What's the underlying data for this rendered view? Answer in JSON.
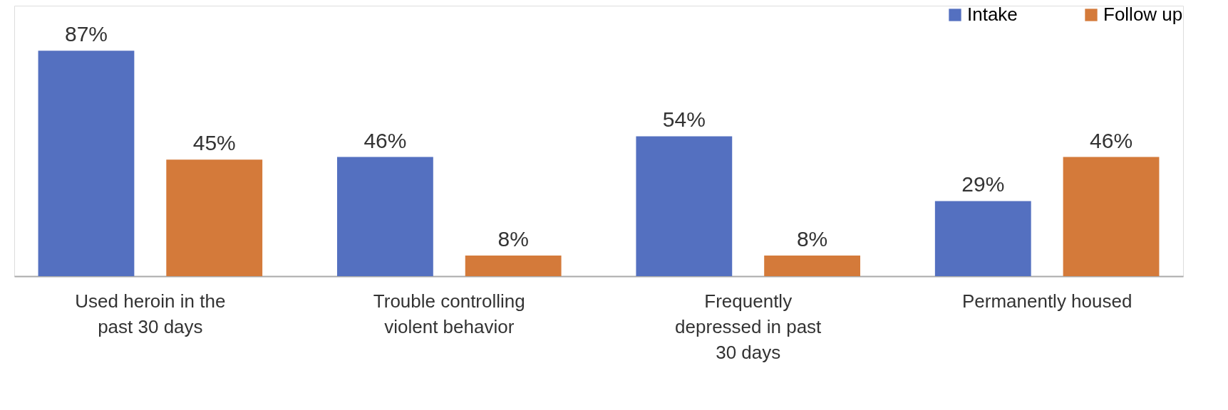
{
  "chart_data": {
    "type": "bar",
    "categories": [
      "Used heroin in the past 30 days",
      "Trouble controlling violent behavior",
      "Frequently depressed in past 30 days",
      "Permanently housed"
    ],
    "series": [
      {
        "name": "Intake",
        "color": "#5470c0",
        "values": [
          87,
          46,
          54,
          29
        ],
        "value_labels": [
          "87%",
          "46%",
          "54%",
          "29%"
        ]
      },
      {
        "name": "Follow up",
        "color": "#d47a3a",
        "values": [
          45,
          8,
          8,
          46
        ],
        "value_labels": [
          "45%",
          "8%",
          "8%",
          "46%"
        ]
      }
    ],
    "legend": "top right",
    "grid": false
  }
}
